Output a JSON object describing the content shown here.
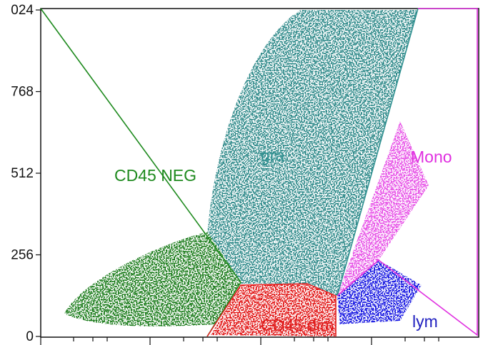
{
  "chart_data": {
    "type": "scatter",
    "ylim": [
      0,
      1024
    ],
    "yticks": [
      0,
      256,
      512,
      768,
      {
        "value": 1024,
        "label": "024"
      }
    ],
    "annotations": [
      {
        "text": "CD45 NEG",
        "color": "#1e8a1e"
      },
      {
        "text": "gra",
        "color": "#2f9090"
      },
      {
        "text": "Mono",
        "color": "#e030e0"
      },
      {
        "text": "CD45 dim",
        "color": "#e02020"
      },
      {
        "text": "lym",
        "color": "#2020c0"
      }
    ]
  }
}
